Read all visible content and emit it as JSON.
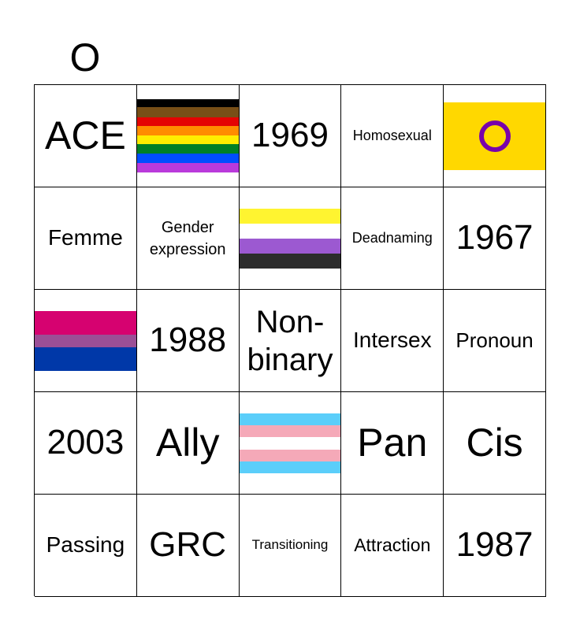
{
  "header": {
    "columns": [
      "",
      "O",
      "",
      "",
      ""
    ]
  },
  "board": {
    "rows": [
      [
        "ACE",
        "",
        "1969",
        "Homosexual",
        ""
      ],
      [
        "Femme",
        "Gender expression",
        "",
        "Deadnaming",
        "1967"
      ],
      [
        "",
        "1988",
        "Non-binary",
        "Intersex",
        "Pronoun"
      ],
      [
        "2003",
        "Ally",
        "",
        "Pan",
        "Cis"
      ],
      [
        "Passing",
        "GRC",
        "Transitioning",
        "Attraction",
        "1987"
      ]
    ],
    "flags": {
      "progress_pride": "progress-pride-flag",
      "intersex": "intersex-flag",
      "nonbinary": "nonbinary-flag",
      "bisexual": "bisexual-flag",
      "transgender": "transgender-flag"
    }
  },
  "colors": {
    "border": "#000000",
    "intersex_yellow": "#FFD800",
    "intersex_purple": "#7902AA",
    "trans_blue": "#5BCEFA",
    "trans_pink": "#F5A9B8",
    "bi_pink": "#D60270",
    "bi_purple": "#9B4F96",
    "bi_blue": "#0038A8",
    "nb_yellow": "#FFF430",
    "nb_purple": "#9C59D1",
    "nb_black": "#2C2C2C"
  }
}
